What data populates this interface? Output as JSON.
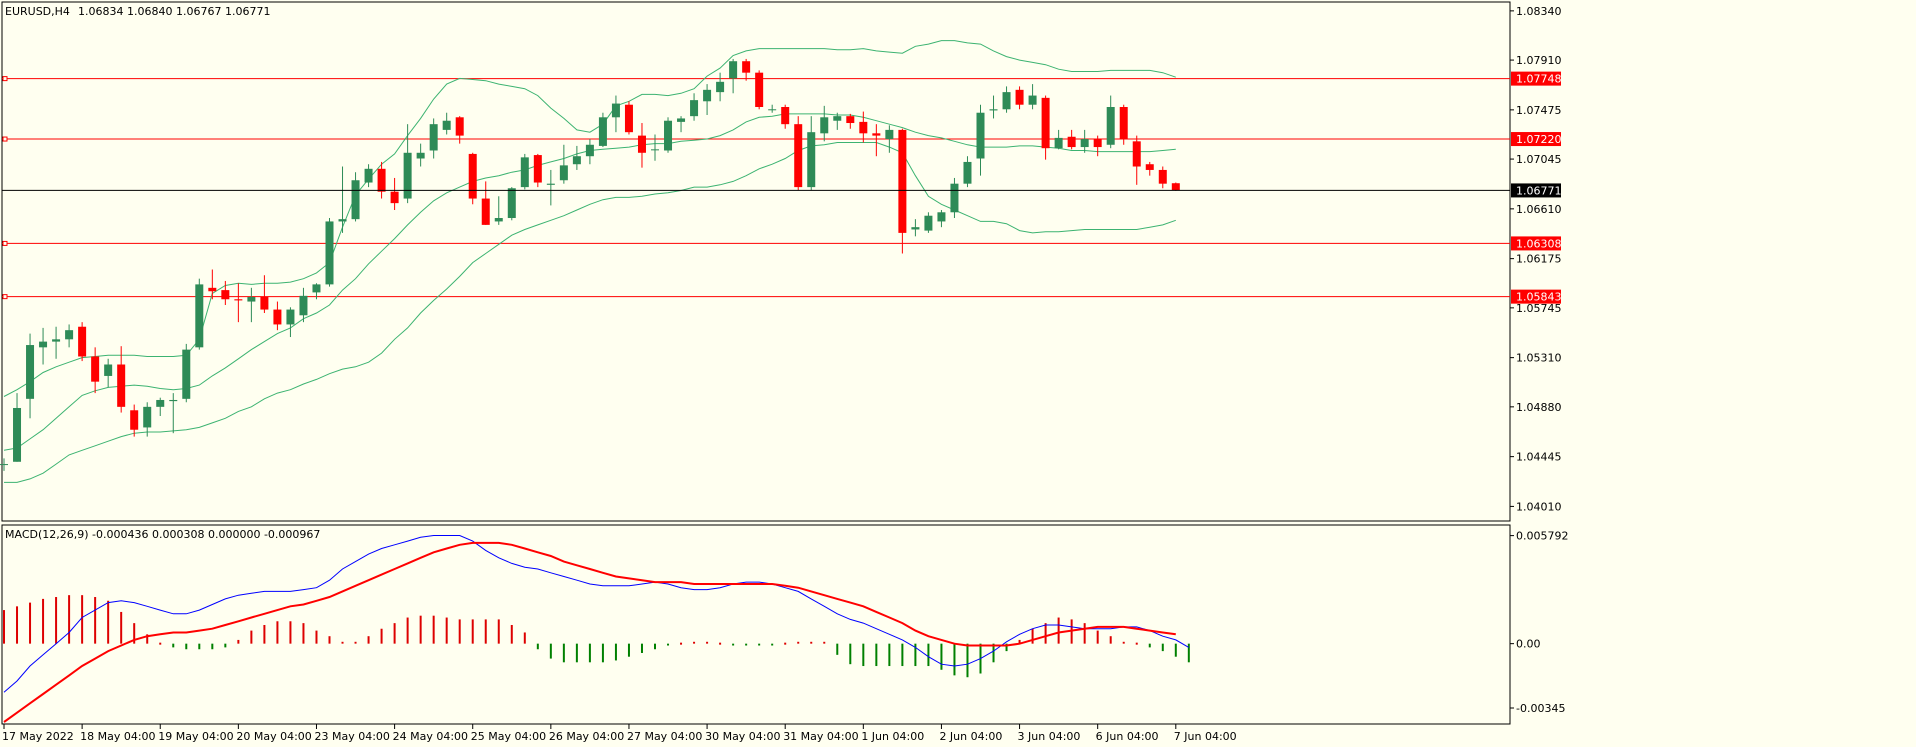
{
  "header": {
    "symbol": "EURUSD,H4",
    "ohlc": "1.06834 1.06840 1.06767 1.06771"
  },
  "macd_panel": {
    "label": "MACD(12,26,9) -0.000436 0.000308 0.000000 -0.000967"
  },
  "price_axis": {
    "ticks": [
      "1.08340",
      "1.07910",
      "1.07475",
      "1.07045",
      "1.06610",
      "1.06175",
      "1.05745",
      "1.05310",
      "1.04880",
      "1.04445",
      "1.04010"
    ],
    "range": [
      1.039,
      1.084
    ]
  },
  "macd_axis": {
    "ticks": [
      "0.005792",
      "0.00",
      "-0.00345"
    ],
    "range": [
      -0.0042,
      0.0062
    ]
  },
  "levels": [
    {
      "value": 1.07748,
      "label": "1.07748",
      "color": "#ff0000"
    },
    {
      "value": 1.0722,
      "label": "1.07220",
      "color": "#ff0000"
    },
    {
      "value": 1.06308,
      "label": "1.06308",
      "color": "#ff0000"
    },
    {
      "value": 1.05843,
      "label": "1.05843",
      "color": "#ff0000"
    }
  ],
  "current_price": {
    "value": 1.06771,
    "label": "1.06771",
    "color": "#000000"
  },
  "time_axis": {
    "labels": [
      {
        "text": "17 May 2022",
        "bar": 0
      },
      {
        "text": "18 May 04:00",
        "bar": 6
      },
      {
        "text": "19 May 04:00",
        "bar": 12
      },
      {
        "text": "20 May 04:00",
        "bar": 18
      },
      {
        "text": "23 May 04:00",
        "bar": 24
      },
      {
        "text": "24 May 04:00",
        "bar": 30
      },
      {
        "text": "25 May 04:00",
        "bar": 36
      },
      {
        "text": "26 May 04:00",
        "bar": 42
      },
      {
        "text": "27 May 04:00",
        "bar": 48
      },
      {
        "text": "30 May 04:00",
        "bar": 54
      },
      {
        "text": "31 May 04:00",
        "bar": 60
      },
      {
        "text": "1 Jun 04:00",
        "bar": 66
      },
      {
        "text": "2 Jun 04:00",
        "bar": 72
      },
      {
        "text": "3 Jun 04:00",
        "bar": 78
      },
      {
        "text": "6 Jun 04:00",
        "bar": 84
      },
      {
        "text": "7 Jun 04:00",
        "bar": 90
      }
    ]
  },
  "colors": {
    "bull": "#2e8b57",
    "bear": "#ff0000",
    "bands": "#3cb371",
    "macd_main": "#0000ff",
    "macd_signal": "#ff0000",
    "hist_pos": "#dd0000",
    "hist_neg": "#008000",
    "background": "#fffff0"
  },
  "chart_data": {
    "type": "candlestick",
    "symbol": "EURUSD",
    "timeframe": "H4",
    "candles": [
      {
        "o": 1.0438,
        "h": 1.0443,
        "l": 1.0432,
        "c": 1.0438
      },
      {
        "o": 1.044,
        "h": 1.05,
        "l": 1.044,
        "c": 1.0487
      },
      {
        "o": 1.0495,
        "h": 1.0552,
        "l": 1.0478,
        "c": 1.0542
      },
      {
        "o": 1.054,
        "h": 1.0557,
        "l": 1.0525,
        "c": 1.0545
      },
      {
        "o": 1.0545,
        "h": 1.0558,
        "l": 1.053,
        "c": 1.0547
      },
      {
        "o": 1.0547,
        "h": 1.056,
        "l": 1.054,
        "c": 1.0555
      },
      {
        "o": 1.0558,
        "h": 1.0562,
        "l": 1.0528,
        "c": 1.0532
      },
      {
        "o": 1.0532,
        "h": 1.054,
        "l": 1.05,
        "c": 1.051
      },
      {
        "o": 1.0515,
        "h": 1.053,
        "l": 1.0505,
        "c": 1.0525
      },
      {
        "o": 1.0525,
        "h": 1.0541,
        "l": 1.0483,
        "c": 1.0488
      },
      {
        "o": 1.0485,
        "h": 1.049,
        "l": 1.0462,
        "c": 1.0468
      },
      {
        "o": 1.047,
        "h": 1.0492,
        "l": 1.0462,
        "c": 1.0488
      },
      {
        "o": 1.0488,
        "h": 1.0496,
        "l": 1.048,
        "c": 1.0494
      },
      {
        "o": 1.0493,
        "h": 1.05,
        "l": 1.0465,
        "c": 1.0494
      },
      {
        "o": 1.0495,
        "h": 1.0543,
        "l": 1.0492,
        "c": 1.0538
      },
      {
        "o": 1.054,
        "h": 1.06,
        "l": 1.0538,
        "c": 1.0595
      },
      {
        "o": 1.0592,
        "h": 1.0608,
        "l": 1.0582,
        "c": 1.0589
      },
      {
        "o": 1.059,
        "h": 1.0598,
        "l": 1.0577,
        "c": 1.0582
      },
      {
        "o": 1.0582,
        "h": 1.0596,
        "l": 1.0562,
        "c": 1.0581
      },
      {
        "o": 1.058,
        "h": 1.0592,
        "l": 1.0562,
        "c": 1.0584
      },
      {
        "o": 1.0584,
        "h": 1.0603,
        "l": 1.057,
        "c": 1.0573
      },
      {
        "o": 1.0573,
        "h": 1.058,
        "l": 1.0555,
        "c": 1.056
      },
      {
        "o": 1.056,
        "h": 1.0575,
        "l": 1.0549,
        "c": 1.0573
      },
      {
        "o": 1.0568,
        "h": 1.0592,
        "l": 1.0562,
        "c": 1.0585
      },
      {
        "o": 1.0588,
        "h": 1.0596,
        "l": 1.0582,
        "c": 1.0595
      },
      {
        "o": 1.0595,
        "h": 1.0653,
        "l": 1.0593,
        "c": 1.065
      },
      {
        "o": 1.065,
        "h": 1.0698,
        "l": 1.064,
        "c": 1.0652
      },
      {
        "o": 1.0652,
        "h": 1.0693,
        "l": 1.065,
        "c": 1.0686
      },
      {
        "o": 1.0684,
        "h": 1.07,
        "l": 1.068,
        "c": 1.0696
      },
      {
        "o": 1.0696,
        "h": 1.0702,
        "l": 1.067,
        "c": 1.0676
      },
      {
        "o": 1.0676,
        "h": 1.0688,
        "l": 1.066,
        "c": 1.0666
      },
      {
        "o": 1.067,
        "h": 1.0735,
        "l": 1.0666,
        "c": 1.071
      },
      {
        "o": 1.0705,
        "h": 1.0718,
        "l": 1.0698,
        "c": 1.071
      },
      {
        "o": 1.0712,
        "h": 1.074,
        "l": 1.0705,
        "c": 1.0735
      },
      {
        "o": 1.073,
        "h": 1.0745,
        "l": 1.0726,
        "c": 1.0738
      },
      {
        "o": 1.0741,
        "h": 1.0742,
        "l": 1.0718,
        "c": 1.0725
      },
      {
        "o": 1.0709,
        "h": 1.071,
        "l": 1.0665,
        "c": 1.067
      },
      {
        "o": 1.067,
        "h": 1.0685,
        "l": 1.0647,
        "c": 1.0647
      },
      {
        "o": 1.065,
        "h": 1.0672,
        "l": 1.0647,
        "c": 1.0653
      },
      {
        "o": 1.0653,
        "h": 1.068,
        "l": 1.0651,
        "c": 1.0679
      },
      {
        "o": 1.068,
        "h": 1.0709,
        "l": 1.0678,
        "c": 1.0706
      },
      {
        "o": 1.0708,
        "h": 1.0709,
        "l": 1.068,
        "c": 1.0684
      },
      {
        "o": 1.0682,
        "h": 1.0695,
        "l": 1.0664,
        "c": 1.0683
      },
      {
        "o": 1.0686,
        "h": 1.0717,
        "l": 1.0683,
        "c": 1.0699
      },
      {
        "o": 1.07,
        "h": 1.0716,
        "l": 1.0695,
        "c": 1.0707
      },
      {
        "o": 1.0707,
        "h": 1.0722,
        "l": 1.07,
        "c": 1.0717
      },
      {
        "o": 1.0716,
        "h": 1.0745,
        "l": 1.0715,
        "c": 1.0741
      },
      {
        "o": 1.0741,
        "h": 1.076,
        "l": 1.0728,
        "c": 1.0753
      },
      {
        "o": 1.0752,
        "h": 1.0755,
        "l": 1.0726,
        "c": 1.0728
      },
      {
        "o": 1.0725,
        "h": 1.0736,
        "l": 1.0697,
        "c": 1.071
      },
      {
        "o": 1.0713,
        "h": 1.0726,
        "l": 1.0703,
        "c": 1.0713
      },
      {
        "o": 1.0712,
        "h": 1.0741,
        "l": 1.071,
        "c": 1.0738
      },
      {
        "o": 1.0737,
        "h": 1.0742,
        "l": 1.0728,
        "c": 1.074
      },
      {
        "o": 1.0742,
        "h": 1.0762,
        "l": 1.0738,
        "c": 1.0756
      },
      {
        "o": 1.0755,
        "h": 1.077,
        "l": 1.0743,
        "c": 1.0765
      },
      {
        "o": 1.0763,
        "h": 1.078,
        "l": 1.0755,
        "c": 1.0772
      },
      {
        "o": 1.0775,
        "h": 1.0792,
        "l": 1.0762,
        "c": 1.079
      },
      {
        "o": 1.079,
        "h": 1.0792,
        "l": 1.0773,
        "c": 1.078
      },
      {
        "o": 1.078,
        "h": 1.0782,
        "l": 1.0748,
        "c": 1.075
      },
      {
        "o": 1.0748,
        "h": 1.0752,
        "l": 1.0745,
        "c": 1.0748
      },
      {
        "o": 1.075,
        "h": 1.0752,
        "l": 1.0731,
        "c": 1.0735
      },
      {
        "o": 1.0735,
        "h": 1.0742,
        "l": 1.0677,
        "c": 1.068
      },
      {
        "o": 1.068,
        "h": 1.0742,
        "l": 1.0677,
        "c": 1.0728
      },
      {
        "o": 1.0727,
        "h": 1.0751,
        "l": 1.072,
        "c": 1.0741
      },
      {
        "o": 1.0738,
        "h": 1.0745,
        "l": 1.073,
        "c": 1.0742
      },
      {
        "o": 1.0742,
        "h": 1.0744,
        "l": 1.0731,
        "c": 1.0736
      },
      {
        "o": 1.0737,
        "h": 1.0746,
        "l": 1.0719,
        "c": 1.0727
      },
      {
        "o": 1.0727,
        "h": 1.0735,
        "l": 1.0707,
        "c": 1.0725
      },
      {
        "o": 1.0722,
        "h": 1.0734,
        "l": 1.071,
        "c": 1.073
      },
      {
        "o": 1.073,
        "h": 1.0731,
        "l": 1.0622,
        "c": 1.064
      },
      {
        "o": 1.0643,
        "h": 1.0652,
        "l": 1.0637,
        "c": 1.0645
      },
      {
        "o": 1.0642,
        "h": 1.0658,
        "l": 1.064,
        "c": 1.0655
      },
      {
        "o": 1.065,
        "h": 1.066,
        "l": 1.0645,
        "c": 1.0658
      },
      {
        "o": 1.0658,
        "h": 1.0688,
        "l": 1.0653,
        "c": 1.0683
      },
      {
        "o": 1.0683,
        "h": 1.0707,
        "l": 1.068,
        "c": 1.0702
      },
      {
        "o": 1.0705,
        "h": 1.0752,
        "l": 1.069,
        "c": 1.0745
      },
      {
        "o": 1.0747,
        "h": 1.076,
        "l": 1.074,
        "c": 1.0748
      },
      {
        "o": 1.0748,
        "h": 1.0768,
        "l": 1.0745,
        "c": 1.0763
      },
      {
        "o": 1.0765,
        "h": 1.0768,
        "l": 1.0748,
        "c": 1.0752
      },
      {
        "o": 1.0752,
        "h": 1.077,
        "l": 1.0748,
        "c": 1.076
      },
      {
        "o": 1.0758,
        "h": 1.076,
        "l": 1.0704,
        "c": 1.0714
      },
      {
        "o": 1.0714,
        "h": 1.073,
        "l": 1.0713,
        "c": 1.0723
      },
      {
        "o": 1.0724,
        "h": 1.073,
        "l": 1.0713,
        "c": 1.0715
      },
      {
        "o": 1.0715,
        "h": 1.073,
        "l": 1.071,
        "c": 1.0722
      },
      {
        "o": 1.0722,
        "h": 1.0725,
        "l": 1.0707,
        "c": 1.0715
      },
      {
        "o": 1.0717,
        "h": 1.076,
        "l": 1.0714,
        "c": 1.075
      },
      {
        "o": 1.075,
        "h": 1.0752,
        "l": 1.0717,
        "c": 1.0722
      },
      {
        "o": 1.072,
        "h": 1.0725,
        "l": 1.0682,
        "c": 1.0698
      },
      {
        "o": 1.07,
        "h": 1.0702,
        "l": 1.069,
        "c": 1.0695
      },
      {
        "o": 1.0695,
        "h": 1.0698,
        "l": 1.0679,
        "c": 1.0683
      },
      {
        "o": 1.06834,
        "h": 1.0684,
        "l": 1.06767,
        "c": 1.06771
      }
    ],
    "bollinger_upper": [
      1.0497,
      1.0503,
      1.051,
      1.0518,
      1.0523,
      1.0527,
      1.0531,
      1.0532,
      1.0533,
      1.0533,
      1.0533,
      1.0532,
      1.0532,
      1.0532,
      1.0533,
      1.0547,
      1.0587,
      1.0594,
      1.0596,
      1.0595,
      1.0596,
      1.0596,
      1.0597,
      1.06,
      1.0605,
      1.0614,
      1.0645,
      1.0673,
      1.0687,
      1.07,
      1.0709,
      1.0725,
      1.074,
      1.0757,
      1.077,
      1.0775,
      1.0774,
      1.0773,
      1.077,
      1.0768,
      1.0766,
      1.076,
      1.0749,
      1.074,
      1.073,
      1.0728,
      1.0735,
      1.0751,
      1.0755,
      1.0761,
      1.0761,
      1.076,
      1.0762,
      1.0766,
      1.0777,
      1.0784,
      1.0795,
      1.0799,
      1.0801,
      1.0801,
      1.0801,
      1.0801,
      1.0801,
      1.0801,
      1.08,
      1.08,
      1.0801,
      1.0799,
      1.0798,
      1.0797,
      1.0803,
      1.0805,
      1.0808,
      1.0808,
      1.0806,
      1.0805,
      1.0799,
      1.0794,
      1.0791,
      1.0789,
      1.0787,
      1.0783,
      1.0781,
      1.0781,
      1.0781,
      1.0782,
      1.0782,
      1.0782,
      1.0782,
      1.078,
      1.0776
    ],
    "bollinger_middle": [
      1.045,
      1.0452,
      1.046,
      1.0468,
      1.0478,
      1.0488,
      1.0498,
      1.0502,
      1.0505,
      1.0506,
      1.0507,
      1.0506,
      1.0504,
      1.0503,
      1.0504,
      1.0507,
      1.0515,
      1.0522,
      1.053,
      1.0538,
      1.0545,
      1.0552,
      1.0557,
      1.0565,
      1.057,
      1.0577,
      1.059,
      1.06,
      1.0613,
      1.0624,
      1.0635,
      1.0647,
      1.0658,
      1.0668,
      1.0675,
      1.068,
      1.0685,
      1.0688,
      1.069,
      1.0693,
      1.0695,
      1.0699,
      1.0702,
      1.0705,
      1.0709,
      1.0712,
      1.0713,
      1.0714,
      1.0715,
      1.0717,
      1.0718,
      1.0718,
      1.072,
      1.0721,
      1.0722,
      1.0725,
      1.073,
      1.0737,
      1.0741,
      1.0742,
      1.0744,
      1.0744,
      1.0744,
      1.0744,
      1.0743,
      1.0743,
      1.0741,
      1.0738,
      1.0735,
      1.0732,
      1.0728,
      1.0725,
      1.0723,
      1.072,
      1.0717,
      1.0715,
      1.0715,
      1.0715,
      1.0716,
      1.0716,
      1.0715,
      1.0714,
      1.0712,
      1.0712,
      1.0711,
      1.0711,
      1.0711,
      1.0711,
      1.0711,
      1.0712,
      1.0713
    ],
    "bollinger_lower": [
      1.0422,
      1.0422,
      1.0425,
      1.043,
      1.0438,
      1.0446,
      1.045,
      1.0454,
      1.0458,
      1.0462,
      1.0465,
      1.0466,
      1.0466,
      1.0467,
      1.0468,
      1.047,
      1.0474,
      1.0478,
      1.0484,
      1.0488,
      1.0495,
      1.05,
      1.0503,
      1.0508,
      1.0512,
      1.0517,
      1.0521,
      1.0523,
      1.0527,
      1.0535,
      1.0547,
      1.0557,
      1.057,
      1.0581,
      1.0591,
      1.0602,
      1.0614,
      1.0622,
      1.063,
      1.0638,
      1.0643,
      1.0647,
      1.0651,
      1.0655,
      1.066,
      1.0665,
      1.0669,
      1.0671,
      1.0671,
      1.0672,
      1.0674,
      1.0675,
      1.0677,
      1.068,
      1.068,
      1.0682,
      1.0685,
      1.069,
      1.0696,
      1.07,
      1.0705,
      1.0712,
      1.0716,
      1.0717,
      1.0719,
      1.0719,
      1.0719,
      1.0719,
      1.0715,
      1.071,
      1.069,
      1.0672,
      1.0665,
      1.066,
      1.0655,
      1.065,
      1.065,
      1.0648,
      1.0642,
      1.064,
      1.0641,
      1.0641,
      1.0642,
      1.0643,
      1.0643,
      1.0643,
      1.0643,
      1.0643,
      1.0645,
      1.0647,
      1.0651
    ],
    "macd_main": [
      -0.0026,
      -0.002,
      -0.0012,
      -0.0006,
      0.0,
      0.0006,
      0.0014,
      0.0018,
      0.0022,
      0.0023,
      0.0022,
      0.002,
      0.0018,
      0.0016,
      0.0016,
      0.0018,
      0.0021,
      0.0024,
      0.0026,
      0.0027,
      0.0028,
      0.0028,
      0.0028,
      0.0029,
      0.003,
      0.0034,
      0.004,
      0.0044,
      0.0048,
      0.0051,
      0.0053,
      0.0055,
      0.0057,
      0.0058,
      0.0058,
      0.0058,
      0.0055,
      0.005,
      0.0046,
      0.0043,
      0.0041,
      0.004,
      0.0038,
      0.0036,
      0.0034,
      0.0032,
      0.0031,
      0.0031,
      0.0031,
      0.0032,
      0.0033,
      0.0032,
      0.003,
      0.0029,
      0.0029,
      0.003,
      0.0032,
      0.0033,
      0.0033,
      0.0032,
      0.003,
      0.0028,
      0.0024,
      0.002,
      0.0016,
      0.0013,
      0.0011,
      0.0008,
      0.0005,
      0.0002,
      -0.0002,
      -0.0007,
      -0.0011,
      -0.0012,
      -0.0011,
      -0.0008,
      -0.0004,
      0.0001,
      0.0005,
      0.0008,
      0.001,
      0.001,
      0.0009,
      0.0008,
      0.0008,
      0.0008,
      0.0009,
      0.0009,
      0.0007,
      0.0004,
      0.0002,
      -0.0002
    ],
    "macd_signal": [
      -0.0042,
      -0.0037,
      -0.0032,
      -0.0027,
      -0.0022,
      -0.0017,
      -0.0012,
      -0.0008,
      -0.0004,
      -0.0001,
      0.0002,
      0.0004,
      0.0005,
      0.0006,
      0.0006,
      0.0007,
      0.0008,
      0.001,
      0.0012,
      0.0014,
      0.0016,
      0.0018,
      0.002,
      0.0021,
      0.0023,
      0.0025,
      0.0028,
      0.0031,
      0.0034,
      0.0037,
      0.004,
      0.0043,
      0.0046,
      0.0049,
      0.0051,
      0.0053,
      0.0054,
      0.0054,
      0.0054,
      0.0053,
      0.0051,
      0.0049,
      0.0047,
      0.0044,
      0.0042,
      0.004,
      0.0038,
      0.0036,
      0.0035,
      0.0034,
      0.0033,
      0.0033,
      0.0033,
      0.0032,
      0.0032,
      0.0032,
      0.0032,
      0.0032,
      0.0032,
      0.0032,
      0.0031,
      0.003,
      0.0028,
      0.0026,
      0.0024,
      0.0022,
      0.002,
      0.0017,
      0.0014,
      0.0011,
      0.0007,
      0.0004,
      0.0002,
      0.0,
      -0.0001,
      -0.0001,
      -0.0001,
      -0.0001,
      0.0,
      0.0002,
      0.0004,
      0.0006,
      0.0007,
      0.0008,
      0.0009,
      0.0009,
      0.0009,
      0.0008,
      0.0007,
      0.0006,
      0.0005
    ],
    "macd_hist": [
      0.0018,
      0.002,
      0.0022,
      0.0024,
      0.0025,
      0.0026,
      0.0026,
      0.0025,
      0.0023,
      0.0017,
      0.0011,
      0.0005,
      0.0,
      -0.0002,
      -0.0003,
      -0.0003,
      -0.0003,
      -0.0002,
      0.0002,
      0.0007,
      0.001,
      0.0012,
      0.0012,
      0.0011,
      0.0007,
      0.0004,
      0.0001,
      0.0001,
      0.0004,
      0.0008,
      0.0011,
      0.0014,
      0.0015,
      0.0015,
      0.0014,
      0.0013,
      0.0013,
      0.0013,
      0.0013,
      0.001,
      0.0006,
      -0.0003,
      -0.0008,
      -0.001,
      -0.001,
      -0.001,
      -0.001,
      -0.0009,
      -0.0007,
      -0.0005,
      -0.0003,
      -0.0001,
      0.0,
      0.0001,
      0.0001,
      0.0,
      -0.0001,
      -0.0001,
      -0.0001,
      -0.0001,
      0.0,
      0.0001,
      0.0001,
      0.0001,
      -0.0006,
      -0.0011,
      -0.0012,
      -0.0012,
      -0.0012,
      -0.0012,
      -0.0012,
      -0.0012,
      -0.0014,
      -0.0017,
      -0.0018,
      -0.0016,
      -0.001,
      -0.0004,
      0.0002,
      0.0008,
      0.0011,
      0.0014,
      0.0013,
      0.0011,
      0.0007,
      0.0004,
      0.0001,
      0.0,
      -0.0002,
      -0.0004,
      -0.0007,
      -0.001
    ]
  }
}
